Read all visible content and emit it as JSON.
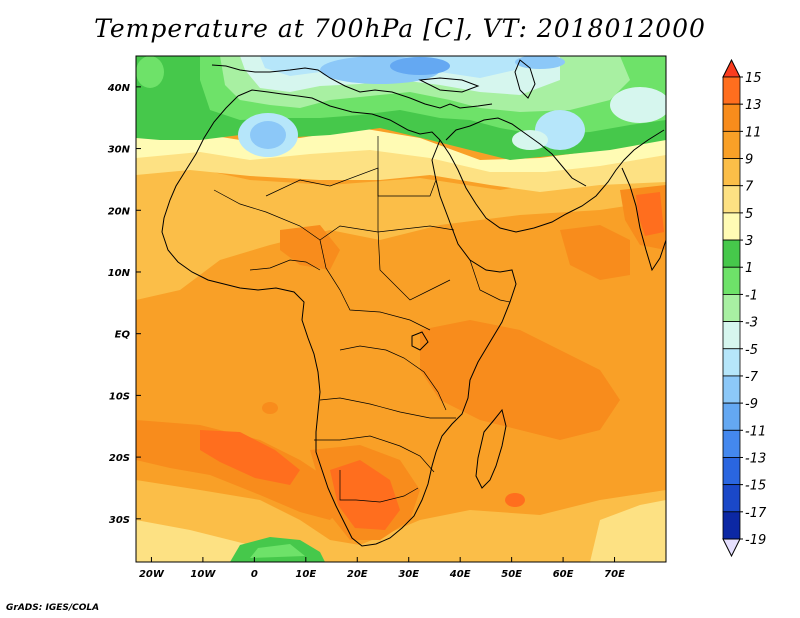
{
  "title": "Temperature at 700hPa [C], VT: 2018012000",
  "credit": "GrADS: IGES/COLA",
  "map": {
    "variable": "Temperature at 700hPa",
    "units": "C",
    "valid_time": "2018012000",
    "lon_range": [
      -23,
      80
    ],
    "lat_range": [
      -37,
      45
    ],
    "lon_ticks": [
      {
        "value": -20,
        "label": "20W"
      },
      {
        "value": -10,
        "label": "10W"
      },
      {
        "value": 0,
        "label": "0"
      },
      {
        "value": 10,
        "label": "10E"
      },
      {
        "value": 20,
        "label": "20E"
      },
      {
        "value": 30,
        "label": "30E"
      },
      {
        "value": 40,
        "label": "40E"
      },
      {
        "value": 50,
        "label": "50E"
      },
      {
        "value": 60,
        "label": "60E"
      },
      {
        "value": 70,
        "label": "70E"
      }
    ],
    "lat_ticks": [
      {
        "value": 40,
        "label": "40N"
      },
      {
        "value": 30,
        "label": "30N"
      },
      {
        "value": 20,
        "label": "20N"
      },
      {
        "value": 10,
        "label": "10N"
      },
      {
        "value": 0,
        "label": "EQ"
      },
      {
        "value": -10,
        "label": "10S"
      },
      {
        "value": -20,
        "label": "20S"
      },
      {
        "value": -30,
        "label": "30S"
      }
    ]
  },
  "colorbar": {
    "labels": [
      "15",
      "13",
      "11",
      "9",
      "7",
      "5",
      "3",
      "1",
      "-1",
      "-3",
      "-5",
      "-7",
      "-9",
      "-11",
      "-13",
      "-15",
      "-17",
      "-19"
    ],
    "colors": [
      "#fa3c1e",
      "#ff6e1e",
      "#f88c1c",
      "#f9a027",
      "#fbbe48",
      "#fde183",
      "#fffbb4",
      "#46c84b",
      "#6ee269",
      "#a8f0a2",
      "#d6f6ee",
      "#b6e6fa",
      "#8cc8f8",
      "#64a8f2",
      "#4488ee",
      "#2a66e0",
      "#1a48c8",
      "#0c28a4",
      "#061870"
    ]
  }
}
